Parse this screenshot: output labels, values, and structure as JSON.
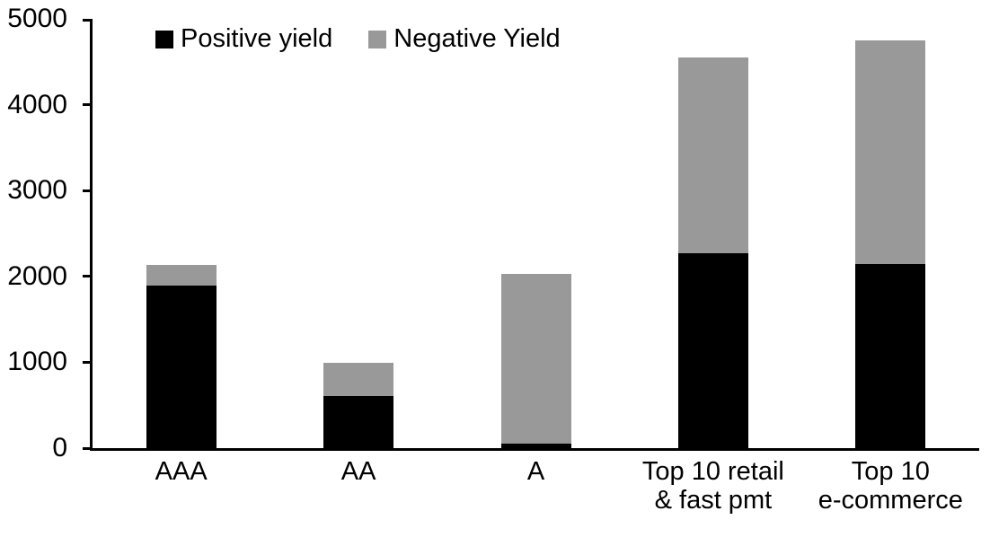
{
  "chart_data": {
    "type": "bar",
    "stacked": true,
    "title": "",
    "xlabel": "",
    "ylabel": "",
    "grid": false,
    "legend_position": "top-left-inside",
    "ylim": [
      0,
      5000
    ],
    "yticks": [
      0,
      1000,
      2000,
      3000,
      4000,
      5000
    ],
    "categories": [
      {
        "label": "AAA",
        "lines": [
          "AAA"
        ]
      },
      {
        "label": "AA",
        "lines": [
          "AA"
        ]
      },
      {
        "label": "A",
        "lines": [
          "A"
        ]
      },
      {
        "label": "Top 10 retail & fast pmt",
        "lines": [
          "Top 10 retail",
          "& fast pmt"
        ]
      },
      {
        "label": "Top 10 e-commerce",
        "lines": [
          "Top 10",
          "e-commerce"
        ]
      }
    ],
    "series": [
      {
        "name": "Positive yield",
        "color": "#000000",
        "values": [
          1890,
          610,
          50,
          2270,
          2140
        ]
      },
      {
        "name": "Negative Yield",
        "color": "#999999",
        "values": [
          240,
          380,
          1980,
          2280,
          2610
        ]
      }
    ],
    "colors": {
      "axis": "#000000",
      "background": "#ffffff"
    }
  }
}
